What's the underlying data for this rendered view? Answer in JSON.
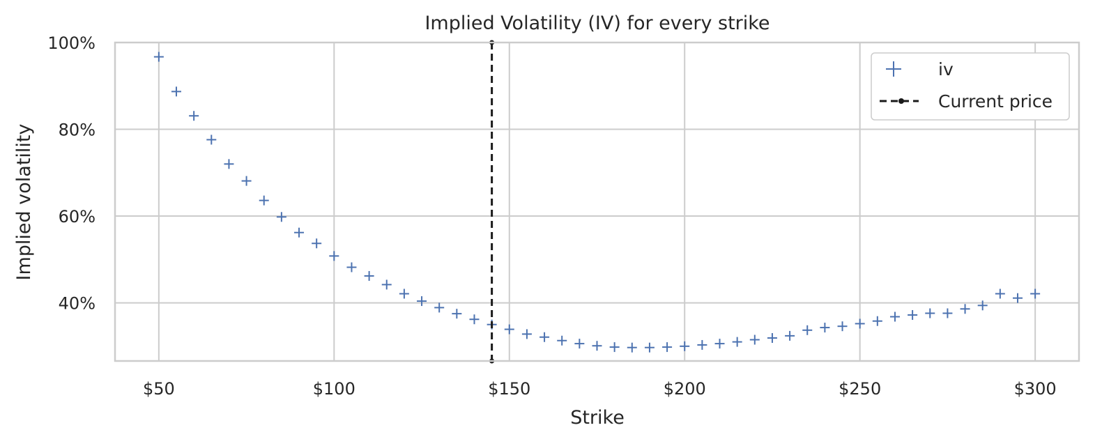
{
  "chart_data": {
    "type": "scatter",
    "title": "Implied Volatility (IV) for every strike",
    "xlabel": "Strike",
    "ylabel": "Implied volatility",
    "xlim": [
      37.5,
      312.5
    ],
    "ylim": [
      0.266,
      1.0
    ],
    "x_ticks": [
      50,
      100,
      150,
      200,
      250,
      300
    ],
    "x_tick_labels": [
      "$50",
      "$100",
      "$150",
      "$200",
      "$250",
      "$300"
    ],
    "y_ticks": [
      0.4,
      0.6,
      0.8,
      1.0
    ],
    "y_tick_labels": [
      "40%",
      "60%",
      "80%",
      "100%"
    ],
    "grid": true,
    "legend_position": "top-right",
    "series": [
      {
        "name": "iv",
        "marker": "+",
        "color": "#4c72b0",
        "x": [
          50,
          55,
          60,
          65,
          70,
          75,
          80,
          85,
          90,
          95,
          100,
          105,
          110,
          115,
          120,
          125,
          130,
          135,
          140,
          145,
          150,
          155,
          160,
          165,
          170,
          175,
          180,
          185,
          190,
          195,
          200,
          205,
          210,
          215,
          220,
          225,
          230,
          235,
          240,
          245,
          250,
          255,
          260,
          265,
          270,
          275,
          280,
          285,
          290,
          295,
          300
        ],
        "y": [
          0.967,
          0.887,
          0.831,
          0.776,
          0.72,
          0.681,
          0.636,
          0.598,
          0.562,
          0.537,
          0.508,
          0.482,
          0.462,
          0.442,
          0.421,
          0.404,
          0.389,
          0.375,
          0.362,
          0.35,
          0.339,
          0.328,
          0.321,
          0.313,
          0.306,
          0.301,
          0.298,
          0.297,
          0.297,
          0.298,
          0.3,
          0.303,
          0.306,
          0.31,
          0.315,
          0.319,
          0.324,
          0.337,
          0.343,
          0.346,
          0.352,
          0.358,
          0.368,
          0.372,
          0.376,
          0.376,
          0.386,
          0.394,
          0.421,
          0.411,
          0.421
        ]
      }
    ],
    "vline": {
      "name": "Current price",
      "x": 145,
      "color": "#1a1a1a",
      "style": "dashed"
    }
  }
}
